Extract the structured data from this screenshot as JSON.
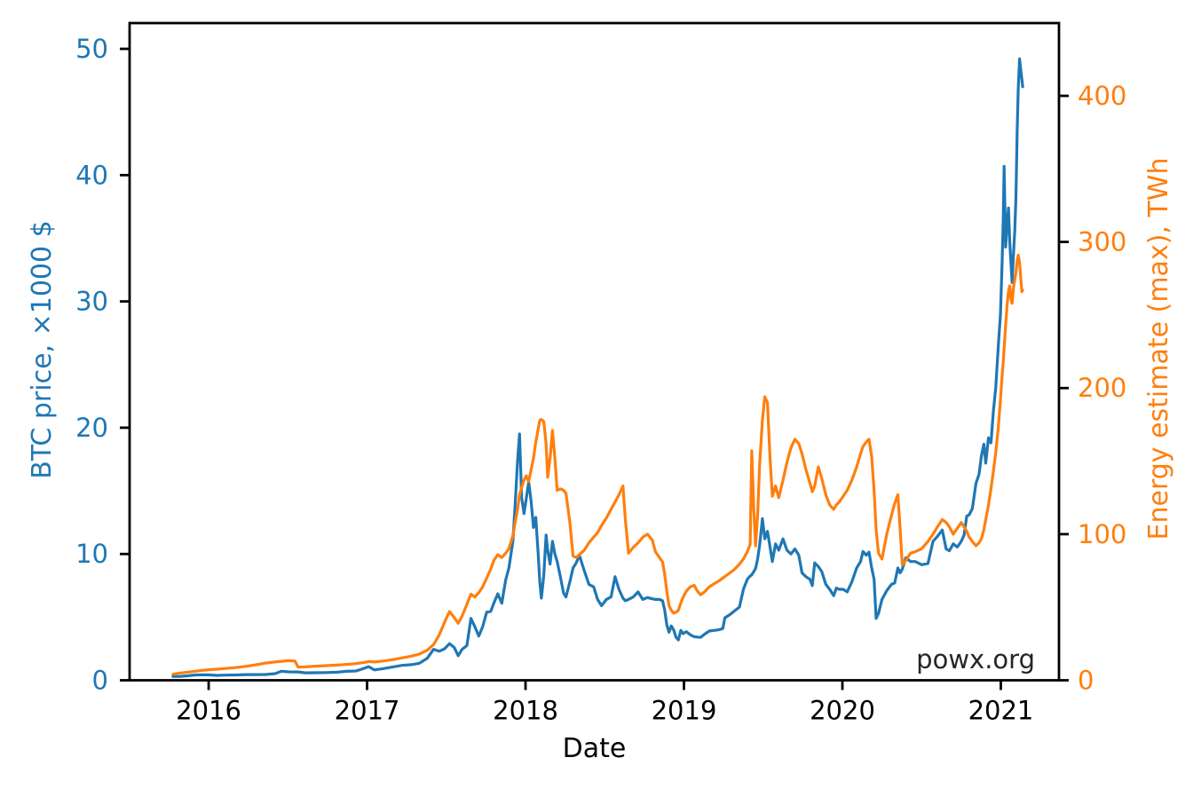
{
  "figure": {
    "watermark": "powx.org",
    "background": "#ffffff"
  },
  "axes": {
    "x": {
      "label": "Date",
      "tick_values": [
        2016,
        2017,
        2018,
        2019,
        2020,
        2021
      ],
      "tick_labels": [
        "2016",
        "2017",
        "2018",
        "2019",
        "2020",
        "2021"
      ],
      "range": [
        2015.501,
        2021.367
      ],
      "color": "#000000"
    },
    "y_left": {
      "label": "BTC price, ×1000 $",
      "tick_values": [
        0,
        10,
        20,
        30,
        40,
        50
      ],
      "tick_labels": [
        "0",
        "10",
        "20",
        "30",
        "40",
        "50"
      ],
      "range": [
        0,
        52.04
      ],
      "color": "#1f77b4"
    },
    "y_right": {
      "label": "Energy estimate (max), TWh",
      "tick_values": [
        0,
        100,
        200,
        300,
        400
      ],
      "tick_labels": [
        "0",
        "100",
        "200",
        "300",
        "400"
      ],
      "range": [
        0,
        449.8
      ],
      "color": "#ff7f0e"
    }
  },
  "chart_data": {
    "type": "line",
    "title": "",
    "xlabel": "Date",
    "x_unit": "decimal_year",
    "grid": false,
    "legend": "none",
    "xlim": [
      2015.501,
      2021.367
    ],
    "ylim_left": [
      0,
      52.04
    ],
    "ylim_right": [
      0,
      449.8
    ],
    "x": [
      2015.775,
      2015.82,
      2015.87,
      2015.915,
      2015.96,
      2016.0,
      2016.05,
      2016.1,
      2016.17,
      2016.24,
      2016.3,
      2016.36,
      2016.42,
      2016.46,
      2016.5,
      2016.545,
      2016.565,
      2016.61,
      2016.67,
      2016.74,
      2016.81,
      2016.87,
      2016.93,
      2016.985,
      2017.01,
      2017.045,
      2017.1,
      2017.16,
      2017.22,
      2017.28,
      2017.33,
      2017.38,
      2017.42,
      2017.455,
      2017.49,
      2017.52,
      2017.55,
      2017.575,
      2017.6,
      2017.63,
      2017.655,
      2017.68,
      2017.705,
      2017.73,
      2017.755,
      2017.78,
      2017.8,
      2017.825,
      2017.85,
      2017.875,
      2017.895,
      2017.92,
      2017.935,
      2017.95,
      2017.962,
      2017.975,
      2017.99,
      2018.005,
      2018.02,
      2018.035,
      2018.05,
      2018.065,
      2018.08,
      2018.09,
      2018.1,
      2018.115,
      2018.13,
      2018.14,
      2018.155,
      2018.17,
      2018.185,
      2018.2,
      2018.22,
      2018.24,
      2018.255,
      2018.28,
      2018.3,
      2018.32,
      2018.34,
      2018.37,
      2018.4,
      2018.43,
      2018.455,
      2018.48,
      2018.51,
      2018.54,
      2018.565,
      2018.59,
      2018.615,
      2018.63,
      2018.65,
      2018.68,
      2018.71,
      2018.74,
      2018.77,
      2018.8,
      2018.82,
      2018.845,
      2018.865,
      2018.878,
      2018.892,
      2018.906,
      2018.92,
      2018.935,
      2018.95,
      2018.965,
      2018.98,
      2018.995,
      2019.015,
      2019.04,
      2019.065,
      2019.085,
      2019.105,
      2019.13,
      2019.16,
      2019.19,
      2019.22,
      2019.245,
      2019.258,
      2019.29,
      2019.32,
      2019.35,
      2019.375,
      2019.4,
      2019.418,
      2019.428,
      2019.44,
      2019.452,
      2019.465,
      2019.478,
      2019.495,
      2019.51,
      2019.527,
      2019.543,
      2019.558,
      2019.578,
      2019.598,
      2019.625,
      2019.65,
      2019.675,
      2019.7,
      2019.725,
      2019.745,
      2019.77,
      2019.795,
      2019.81,
      2019.825,
      2019.848,
      2019.87,
      2019.895,
      2019.92,
      2019.945,
      2019.962,
      2019.98,
      2020.005,
      2020.03,
      2020.06,
      2020.09,
      2020.115,
      2020.13,
      2020.15,
      2020.168,
      2020.185,
      2020.2,
      2020.213,
      2020.228,
      2020.25,
      2020.28,
      2020.31,
      2020.33,
      2020.35,
      2020.364,
      2020.378,
      2020.4,
      2020.43,
      2020.46,
      2020.5,
      2020.54,
      2020.572,
      2020.6,
      2020.63,
      2020.655,
      2020.675,
      2020.7,
      2020.725,
      2020.75,
      2020.768,
      2020.785,
      2020.8,
      2020.82,
      2020.843,
      2020.862,
      2020.878,
      2020.893,
      2020.905,
      2020.922,
      2020.938,
      2020.953,
      2020.968,
      2020.983,
      2020.998,
      2021.008,
      2021.015,
      2021.021,
      2021.03,
      2021.04,
      2021.048,
      2021.056,
      2021.064,
      2021.071,
      2021.08,
      2021.088,
      2021.095,
      2021.103,
      2021.11,
      2021.118,
      2021.126,
      2021.133,
      2021.138
    ],
    "series": [
      {
        "name": "BTC price, ×1000 $",
        "data_name": "btc-price-line",
        "axis": "left",
        "color": "#1f77b4",
        "values": [
          0.3,
          0.31,
          0.36,
          0.42,
          0.43,
          0.43,
          0.39,
          0.41,
          0.42,
          0.45,
          0.45,
          0.46,
          0.53,
          0.72,
          0.67,
          0.66,
          0.66,
          0.59,
          0.6,
          0.61,
          0.64,
          0.71,
          0.74,
          0.96,
          1.08,
          0.82,
          0.92,
          1.05,
          1.18,
          1.24,
          1.35,
          1.75,
          2.45,
          2.3,
          2.5,
          2.9,
          2.6,
          1.95,
          2.45,
          2.75,
          4.9,
          4.25,
          3.5,
          4.25,
          5.4,
          5.45,
          6.1,
          6.85,
          6.1,
          7.95,
          8.9,
          11.0,
          14.0,
          17.4,
          19.5,
          14.5,
          13.2,
          14.4,
          15.7,
          14.2,
          12.1,
          12.9,
          10.0,
          7.8,
          6.5,
          8.3,
          11.5,
          10.3,
          9.2,
          11.0,
          10.0,
          9.4,
          8.2,
          6.9,
          6.6,
          7.8,
          8.9,
          9.3,
          9.9,
          8.7,
          7.6,
          7.4,
          6.4,
          5.9,
          6.4,
          6.6,
          8.2,
          7.2,
          6.5,
          6.3,
          6.4,
          6.6,
          7.0,
          6.4,
          6.55,
          6.45,
          6.4,
          6.4,
          6.3,
          5.6,
          4.4,
          3.8,
          4.3,
          4.0,
          3.4,
          3.2,
          3.95,
          3.7,
          3.85,
          3.6,
          3.45,
          3.42,
          3.4,
          3.65,
          3.9,
          3.95,
          4.0,
          4.1,
          4.95,
          5.2,
          5.5,
          5.8,
          7.2,
          8.0,
          8.25,
          8.35,
          8.6,
          8.85,
          9.6,
          10.7,
          12.8,
          11.2,
          11.8,
          10.6,
          9.4,
          10.8,
          10.3,
          11.2,
          10.3,
          10.0,
          10.4,
          9.9,
          8.5,
          8.2,
          8.0,
          7.5,
          9.3,
          9.0,
          8.6,
          7.6,
          7.2,
          6.7,
          7.3,
          7.2,
          7.2,
          7.0,
          7.8,
          8.9,
          9.4,
          10.2,
          9.9,
          10.15,
          8.9,
          8.0,
          4.9,
          5.3,
          6.4,
          7.1,
          7.6,
          7.7,
          8.9,
          8.5,
          8.8,
          9.7,
          9.4,
          9.4,
          9.15,
          9.25,
          11.0,
          11.4,
          11.9,
          10.4,
          10.25,
          10.8,
          10.55,
          11.0,
          11.5,
          13.0,
          13.1,
          13.6,
          15.6,
          16.3,
          17.8,
          18.7,
          17.2,
          19.2,
          18.8,
          21.3,
          23.2,
          26.3,
          29.0,
          33.0,
          36.5,
          40.7,
          34.3,
          36.2,
          37.4,
          34.8,
          33.0,
          31.5,
          33.8,
          35.6,
          38.2,
          43.5,
          46.8,
          49.2,
          48.3,
          47.6,
          47.0
        ]
      },
      {
        "name": "Energy estimate (max), TWh",
        "data_name": "energy-estimate-line",
        "axis": "right",
        "color": "#ff7f0e",
        "values": [
          4.2,
          5.0,
          5.6,
          6.2,
          6.8,
          7.2,
          7.6,
          8.0,
          8.7,
          9.6,
          10.6,
          11.8,
          12.6,
          13.0,
          13.4,
          13.1,
          9.0,
          9.2,
          9.6,
          10.0,
          10.4,
          10.9,
          11.4,
          12.3,
          12.8,
          12.5,
          13.2,
          14.1,
          15.3,
          16.5,
          18.0,
          20.6,
          24.5,
          31.0,
          40.0,
          47.0,
          43.0,
          39.0,
          44.0,
          52.0,
          59.0,
          57.0,
          60.0,
          64.0,
          70.0,
          76.0,
          82.0,
          86.0,
          84.0,
          87.0,
          90.0,
          99.0,
          108.0,
          117.0,
          127.0,
          132.0,
          137.0,
          140,
          136,
          144,
          152,
          163,
          172,
          178,
          178.5,
          177,
          162,
          139,
          152,
          171,
          152,
          130,
          131,
          130,
          128,
          108,
          85,
          84,
          86,
          89,
          94,
          98,
          101,
          106,
          111,
          117,
          122,
          127,
          133,
          110,
          87,
          91,
          94,
          98,
          100,
          96,
          88,
          84,
          81,
          73,
          61,
          51,
          48,
          46,
          46.5,
          48,
          53,
          57,
          61,
          64,
          65,
          61,
          58.5,
          60.5,
          64,
          66,
          68,
          70,
          71,
          73.5,
          76,
          79.5,
          83,
          88,
          93,
          157,
          118,
          92,
          113,
          148,
          178,
          194,
          190,
          153,
          126,
          133,
          125,
          137,
          149,
          159,
          165,
          162,
          155,
          144,
          135,
          129,
          133,
          146,
          138,
          127,
          120,
          117,
          120,
          122,
          126,
          130,
          137,
          146,
          155,
          160,
          163,
          165,
          153,
          130,
          103,
          87,
          83,
          100,
          113,
          121,
          127,
          104,
          79,
          82,
          87,
          88,
          90,
          95,
          100,
          105,
          110,
          108,
          105,
          100,
          104,
          108,
          105,
          102,
          98,
          95,
          92,
          94,
          97,
          103,
          110,
          120,
          131,
          143,
          156,
          172,
          192,
          208,
          218,
          227,
          243,
          257,
          266,
          270,
          261,
          258,
          269,
          274,
          279,
          287,
          291,
          286,
          275,
          266,
          267
        ]
      }
    ]
  },
  "style": {
    "spine_color": "#000000",
    "line_width": 3.2,
    "tick_font_size": 29,
    "label_font_size": 30
  }
}
